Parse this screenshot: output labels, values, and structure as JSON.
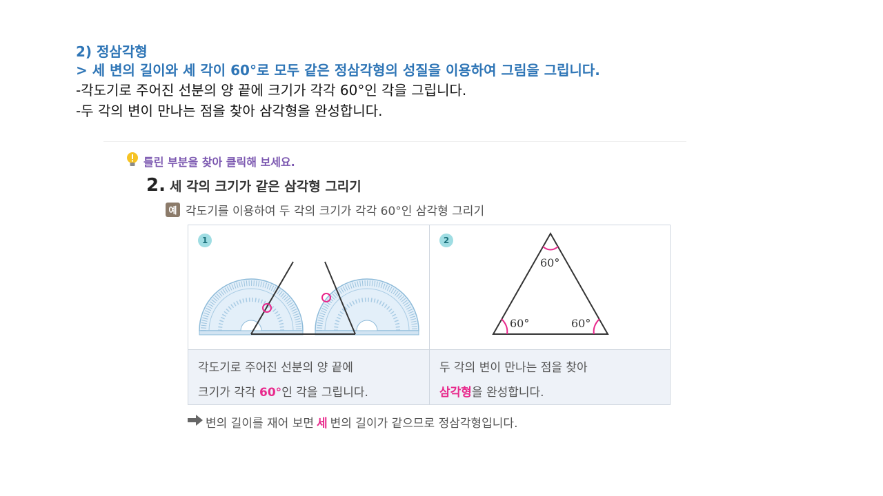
{
  "heading": {
    "title": "2) 정삼각형",
    "subtitle": "> 세 변의 길이와 세 각이 60°로 모두 같은 정삼각형의 성질을 이용하여 그림을 그립니다.",
    "lines": [
      "-각도기로 주어진 선분의 양 끝에 크기가 각각 60°인 각을 그립니다.",
      "-두 각의 변이 만나는 점을 찾아 삼각형을 완성합니다."
    ]
  },
  "worksheet": {
    "hint": "틀린 부분을 찾아 클릭해 보세요.",
    "section_number": "2.",
    "section_title": "세 각의 크기가 같은 삼각형 그리기",
    "example_badge": "예",
    "example_text": "각도기를 이용하여 두 각의 크기가 각각 60°인 삼각형 그리기",
    "steps": [
      {
        "number": "1",
        "caption_line1": "각도기로 주어진 선분의 양 끝에",
        "caption_line2_before": "크기가 각각 ",
        "caption_line2_highlight": "60°",
        "caption_line2_after": "인 각을 그립니다."
      },
      {
        "number": "2",
        "caption_line1": "두 각의 변이 만나는 점을 찾아",
        "caption_line2_highlight": "삼각형",
        "caption_line2_after": "을 완성합니다.",
        "angle_top": "60°",
        "angle_left": "60°",
        "angle_right": "60°"
      }
    ],
    "conclusion_before": "변의 길이를 재어 보면 ",
    "conclusion_highlight": "세",
    "conclusion_after": " 변의 길이가 같으므로 정삼각형입니다."
  },
  "colors": {
    "heading_blue": "#2e75b6",
    "highlight_pink": "#e8298c",
    "hint_purple": "#7b57b0",
    "step_circle": "#9fdde3",
    "caption_bg": "#eef2f8"
  },
  "icons": [
    "lightbulb-icon",
    "right-arrow-icon",
    "protractor-icon"
  ]
}
